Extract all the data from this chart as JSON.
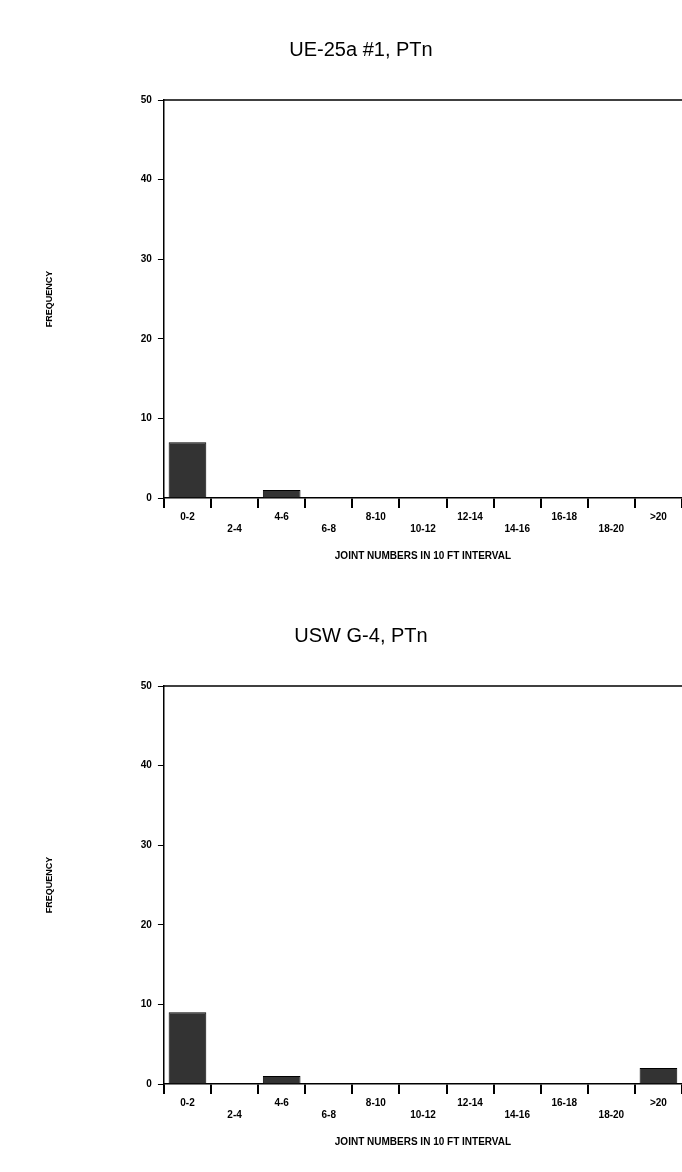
{
  "chart_data": [
    {
      "type": "bar",
      "title": "UE-25a #1, PTn",
      "xlabel": "JOINT NUMBERS IN 10 FT INTERVAL",
      "ylabel": "FREQUENCY",
      "categories": [
        "0-2",
        "2-4",
        "4-6",
        "6-8",
        "8-10",
        "10-12",
        "12-14",
        "14-16",
        "16-18",
        "18-20",
        ">20"
      ],
      "values": [
        7,
        0,
        1,
        0,
        0,
        0,
        0,
        0,
        0,
        0,
        0
      ],
      "color": "#333333",
      "ylim": [
        0,
        50
      ],
      "yticks": [
        0,
        10,
        20,
        30,
        40,
        50
      ],
      "grid": false,
      "legend": false
    },
    {
      "type": "bar",
      "title": "USW G-4, PTn",
      "xlabel": "JOINT NUMBERS IN 10 FT INTERVAL",
      "ylabel": "FREQUENCY",
      "categories": [
        "0-2",
        "2-4",
        "4-6",
        "6-8",
        "8-10",
        "10-12",
        "12-14",
        "14-16",
        "16-18",
        "18-20",
        ">20"
      ],
      "values": [
        9,
        0,
        1,
        0,
        0,
        0,
        0,
        0,
        0,
        0,
        2
      ],
      "color": "#333333",
      "ylim": [
        0,
        50
      ],
      "yticks": [
        0,
        10,
        20,
        30,
        40,
        50
      ],
      "grid": false,
      "legend": false
    }
  ]
}
